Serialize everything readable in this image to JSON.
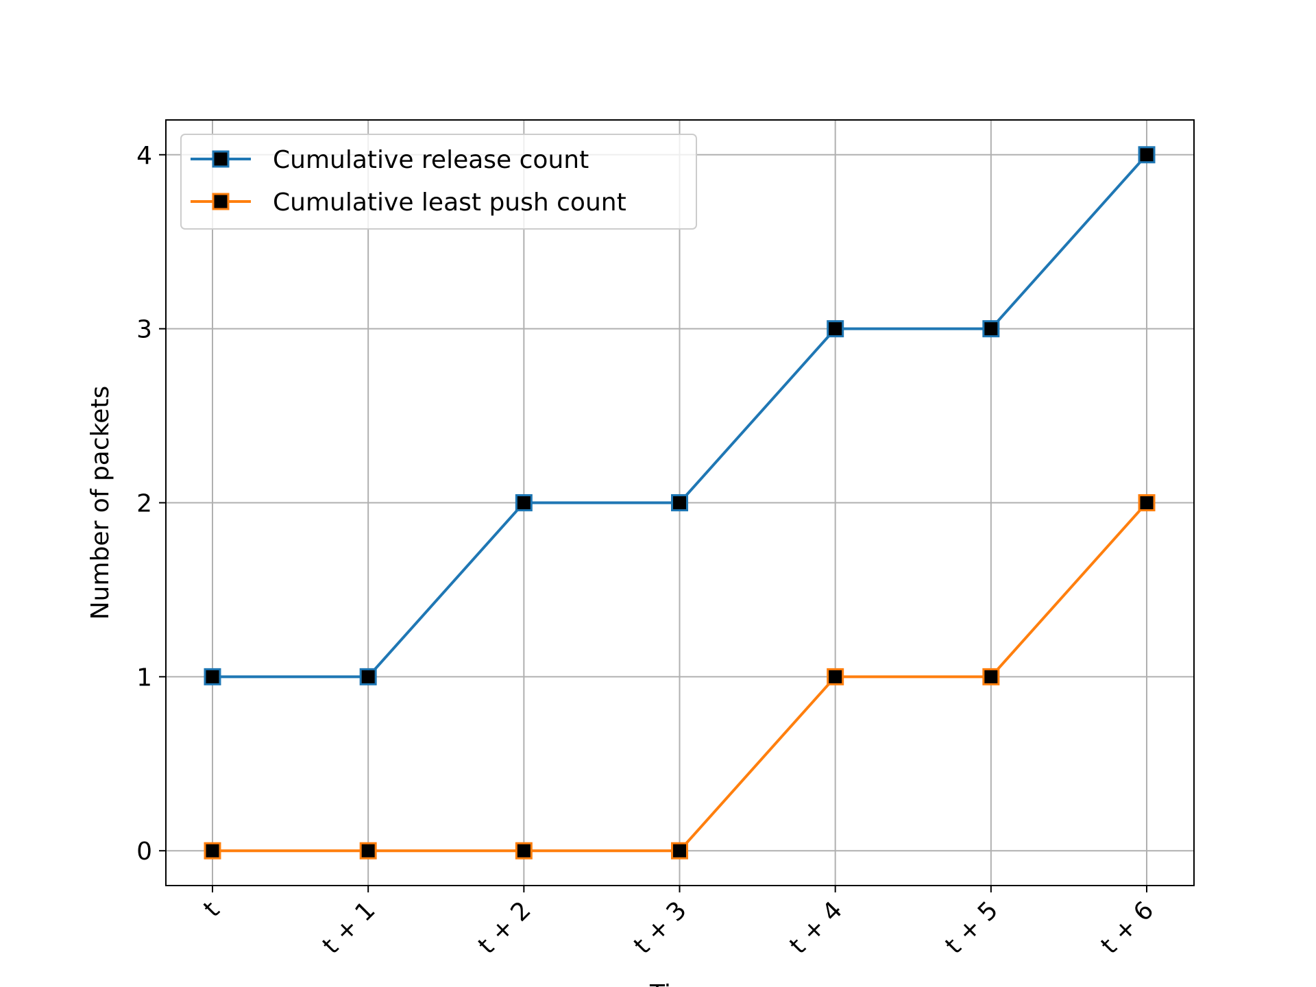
{
  "chart_data": {
    "type": "line",
    "title": "",
    "xlabel": "Time",
    "ylabel": "Number of packets",
    "categories": [
      "t",
      "t + 1",
      "t + 2",
      "t + 3",
      "t + 4",
      "t + 5",
      "t + 6"
    ],
    "yticks": [
      "0",
      "1",
      "2",
      "3",
      "4"
    ],
    "ylim": [
      -0.2,
      4.2
    ],
    "grid": true,
    "legend_position": "top-left",
    "series": [
      {
        "name": "Cumulative release count",
        "values": [
          1,
          1,
          2,
          2,
          3,
          3,
          4
        ],
        "color": "#1f77b4"
      },
      {
        "name": "Cumulative least push count",
        "values": [
          0,
          0,
          0,
          0,
          1,
          1,
          2
        ],
        "color": "#ff7f0e"
      }
    ],
    "marker": "square",
    "marker_face_color": "#000000"
  }
}
